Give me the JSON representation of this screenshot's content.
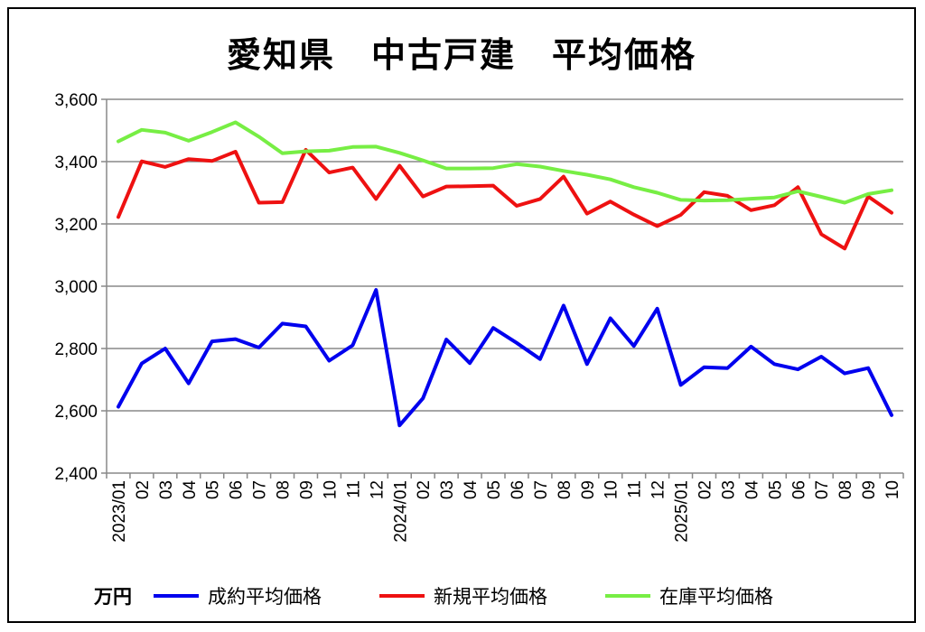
{
  "chart_data": {
    "type": "line",
    "title": "愛知県　中古戸建　平均価格",
    "unit": "万円",
    "ylim": [
      2400,
      3600
    ],
    "yticks": [
      2400,
      2600,
      2800,
      3000,
      3200,
      3400,
      3600
    ],
    "ytick_labels": [
      "2,400",
      "2,600",
      "2,800",
      "3,000",
      "3,200",
      "3,400",
      "3,600"
    ],
    "grid": true,
    "legend_position": "bottom",
    "categories": [
      "2023/01",
      "02",
      "03",
      "04",
      "05",
      "06",
      "07",
      "08",
      "09",
      "10",
      "11",
      "12",
      "2024/01",
      "02",
      "03",
      "04",
      "05",
      "06",
      "07",
      "08",
      "09",
      "10",
      "11",
      "12",
      "2025/01",
      "02",
      "03",
      "04",
      "05",
      "06",
      "07",
      "08",
      "09",
      "10"
    ],
    "series": [
      {
        "name": "成約平均価格",
        "color": "#0000ee",
        "values": [
          2613,
          2752,
          2800,
          2688,
          2823,
          2830,
          2803,
          2880,
          2871,
          2761,
          2810,
          2988,
          2553,
          2640,
          2829,
          2753,
          2866,
          2818,
          2766,
          2938,
          2750,
          2897,
          2808,
          2928,
          2683,
          2740,
          2737,
          2806,
          2750,
          2733,
          2774,
          2720,
          2737,
          2586
        ]
      },
      {
        "name": "新規平均価格",
        "color": "#ee1111",
        "values": [
          3222,
          3401,
          3383,
          3408,
          3402,
          3432,
          3268,
          3270,
          3438,
          3365,
          3381,
          3280,
          3387,
          3288,
          3320,
          3321,
          3323,
          3258,
          3280,
          3352,
          3233,
          3272,
          3230,
          3193,
          3229,
          3302,
          3290,
          3244,
          3260,
          3318,
          3167,
          3121,
          3288,
          3236
        ]
      },
      {
        "name": "在庫平均価格",
        "color": "#77ee44",
        "values": [
          3465,
          3502,
          3493,
          3467,
          3495,
          3526,
          3480,
          3427,
          3433,
          3435,
          3447,
          3448,
          3428,
          3404,
          3378,
          3378,
          3379,
          3392,
          3384,
          3370,
          3358,
          3343,
          3318,
          3300,
          3277,
          3275,
          3276,
          3281,
          3285,
          3305,
          3287,
          3268,
          3296,
          3308
        ]
      }
    ]
  }
}
